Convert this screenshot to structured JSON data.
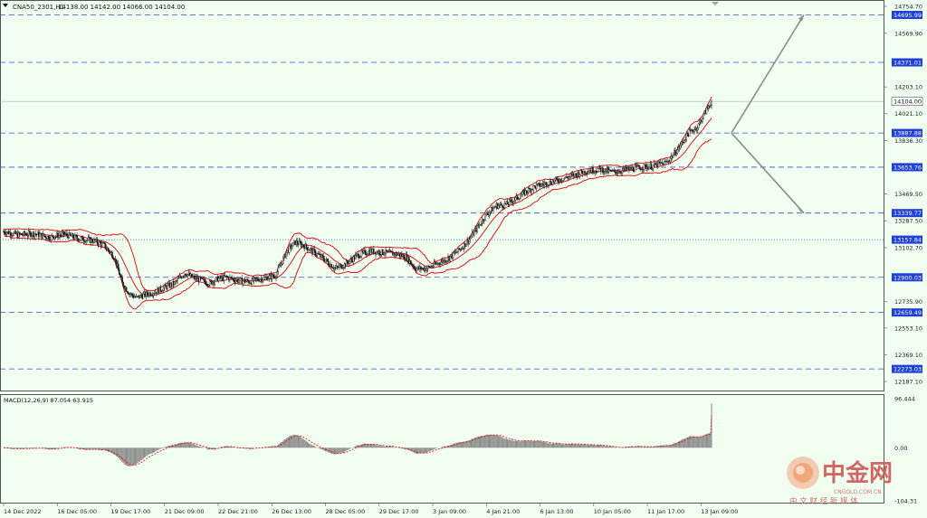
{
  "header": {
    "symbol_info": "CNA50_2301,H1",
    "ohlc_text": "14138.00 14142.00 14066.00 14104.00"
  },
  "colors": {
    "background": "#f0fff0",
    "grid_dashed": "#3a4fd0",
    "candle": "#1a1a1a",
    "band": "#e00000",
    "macd_hist": "#8a8a8a",
    "macd_signal": "#e00000",
    "label_bg": "#1e3fd8",
    "projection": "#8a8a8a"
  },
  "chart_data": {
    "type": "candlestick",
    "price_axis": {
      "ticks": [
        "14754.70",
        "14569.90",
        "14203.10",
        "14021.10",
        "13836.30",
        "13469.50",
        "13287.50",
        "13102.70",
        "12735.90",
        "12553.10",
        "12369.10",
        "12187.10"
      ],
      "tick_values": [
        14754.7,
        14569.9,
        14203.1,
        14021.1,
        13836.3,
        13469.5,
        13287.5,
        13102.7,
        12735.9,
        12553.1,
        12369.1,
        12187.1
      ]
    },
    "horizontal_levels": [
      {
        "label": "14695.99",
        "value": 14695.99,
        "style": "dashed"
      },
      {
        "label": "14371.01",
        "value": 14371.01,
        "style": "dashed"
      },
      {
        "label": "13887.88",
        "value": 13887.88,
        "style": "dashed"
      },
      {
        "label": "13653.76",
        "value": 13653.76,
        "style": "dashed"
      },
      {
        "label": "13339.77",
        "value": 13339.77,
        "style": "dashed"
      },
      {
        "label": "13157.84",
        "value": 13157.84,
        "style": "dotted"
      },
      {
        "label": "12900.03",
        "value": 12900.03,
        "style": "dashed"
      },
      {
        "label": "12659.49",
        "value": 12659.49,
        "style": "dashed"
      },
      {
        "label": "12273.03",
        "value": 12273.03,
        "style": "dashed"
      }
    ],
    "current_price": {
      "label": "14104.00",
      "value": 14104.0
    },
    "time_axis": [
      "14 Dec 2022",
      "16 Dec 05:00",
      "19 Dec 17:00",
      "21 Dec 09:00",
      "22 Dec 21:00",
      "26 Dec 13:00",
      "28 Dec 05:00",
      "29 Dec 17:00",
      "3 Jan 09:00",
      "4 Jan 21:00",
      "6 Jan 13:00",
      "10 Jan 05:00",
      "11 Jan 17:00",
      "13 Jan 09:00"
    ],
    "close_path": [
      [
        0,
        13215
      ],
      [
        15,
        13190
      ],
      [
        30,
        13200
      ],
      [
        45,
        13175
      ],
      [
        60,
        13195
      ],
      [
        75,
        13165
      ],
      [
        90,
        13150
      ],
      [
        100,
        13120
      ],
      [
        110,
        13040
      ],
      [
        118,
        12860
      ],
      [
        125,
        12790
      ],
      [
        132,
        12760
      ],
      [
        140,
        12780
      ],
      [
        150,
        12800
      ],
      [
        160,
        12830
      ],
      [
        170,
        12860
      ],
      [
        180,
        12930
      ],
      [
        188,
        12900
      ],
      [
        196,
        12880
      ],
      [
        205,
        12860
      ],
      [
        213,
        12890
      ],
      [
        222,
        12900
      ],
      [
        232,
        12880
      ],
      [
        245,
        12870
      ],
      [
        255,
        12890
      ],
      [
        270,
        12910
      ],
      [
        282,
        13080
      ],
      [
        290,
        13140
      ],
      [
        298,
        13120
      ],
      [
        305,
        13090
      ],
      [
        318,
        13030
      ],
      [
        330,
        12960
      ],
      [
        340,
        12990
      ],
      [
        352,
        13050
      ],
      [
        365,
        13080
      ],
      [
        378,
        13070
      ],
      [
        390,
        13060
      ],
      [
        400,
        13040
      ],
      [
        410,
        12960
      ],
      [
        420,
        12960
      ],
      [
        430,
        12990
      ],
      [
        442,
        13030
      ],
      [
        452,
        13080
      ],
      [
        462,
        13150
      ],
      [
        470,
        13230
      ],
      [
        480,
        13330
      ],
      [
        490,
        13390
      ],
      [
        500,
        13400
      ],
      [
        510,
        13440
      ],
      [
        518,
        13480
      ],
      [
        528,
        13520
      ],
      [
        538,
        13540
      ],
      [
        548,
        13560
      ],
      [
        558,
        13580
      ],
      [
        568,
        13600
      ],
      [
        580,
        13630
      ],
      [
        592,
        13640
      ],
      [
        605,
        13620
      ],
      [
        618,
        13635
      ],
      [
        630,
        13650
      ],
      [
        645,
        13660
      ],
      [
        660,
        13690
      ],
      [
        672,
        13790
      ],
      [
        680,
        13880
      ],
      [
        690,
        13930
      ],
      [
        700,
        14060
      ],
      [
        704,
        14104
      ]
    ],
    "macd": {
      "label": "MACD(12,26,9) 87.054 63.915",
      "ticks": [
        "96.444",
        "0.00",
        "-104.31"
      ],
      "tick_values": [
        96.444,
        0,
        -104.31
      ],
      "main_value": 87.054,
      "signal_value": 63.915
    },
    "projection_arrows": [
      {
        "label": "up",
        "targets": [
          14371.01,
          14695.99
        ]
      },
      {
        "label": "down",
        "targets": [
          13653.76,
          13339.77
        ]
      }
    ]
  },
  "watermark": {
    "brand": "中金网",
    "url": "CNGOLD.COM.CN",
    "tagline": "中 文 财 经 新 媒 体"
  }
}
